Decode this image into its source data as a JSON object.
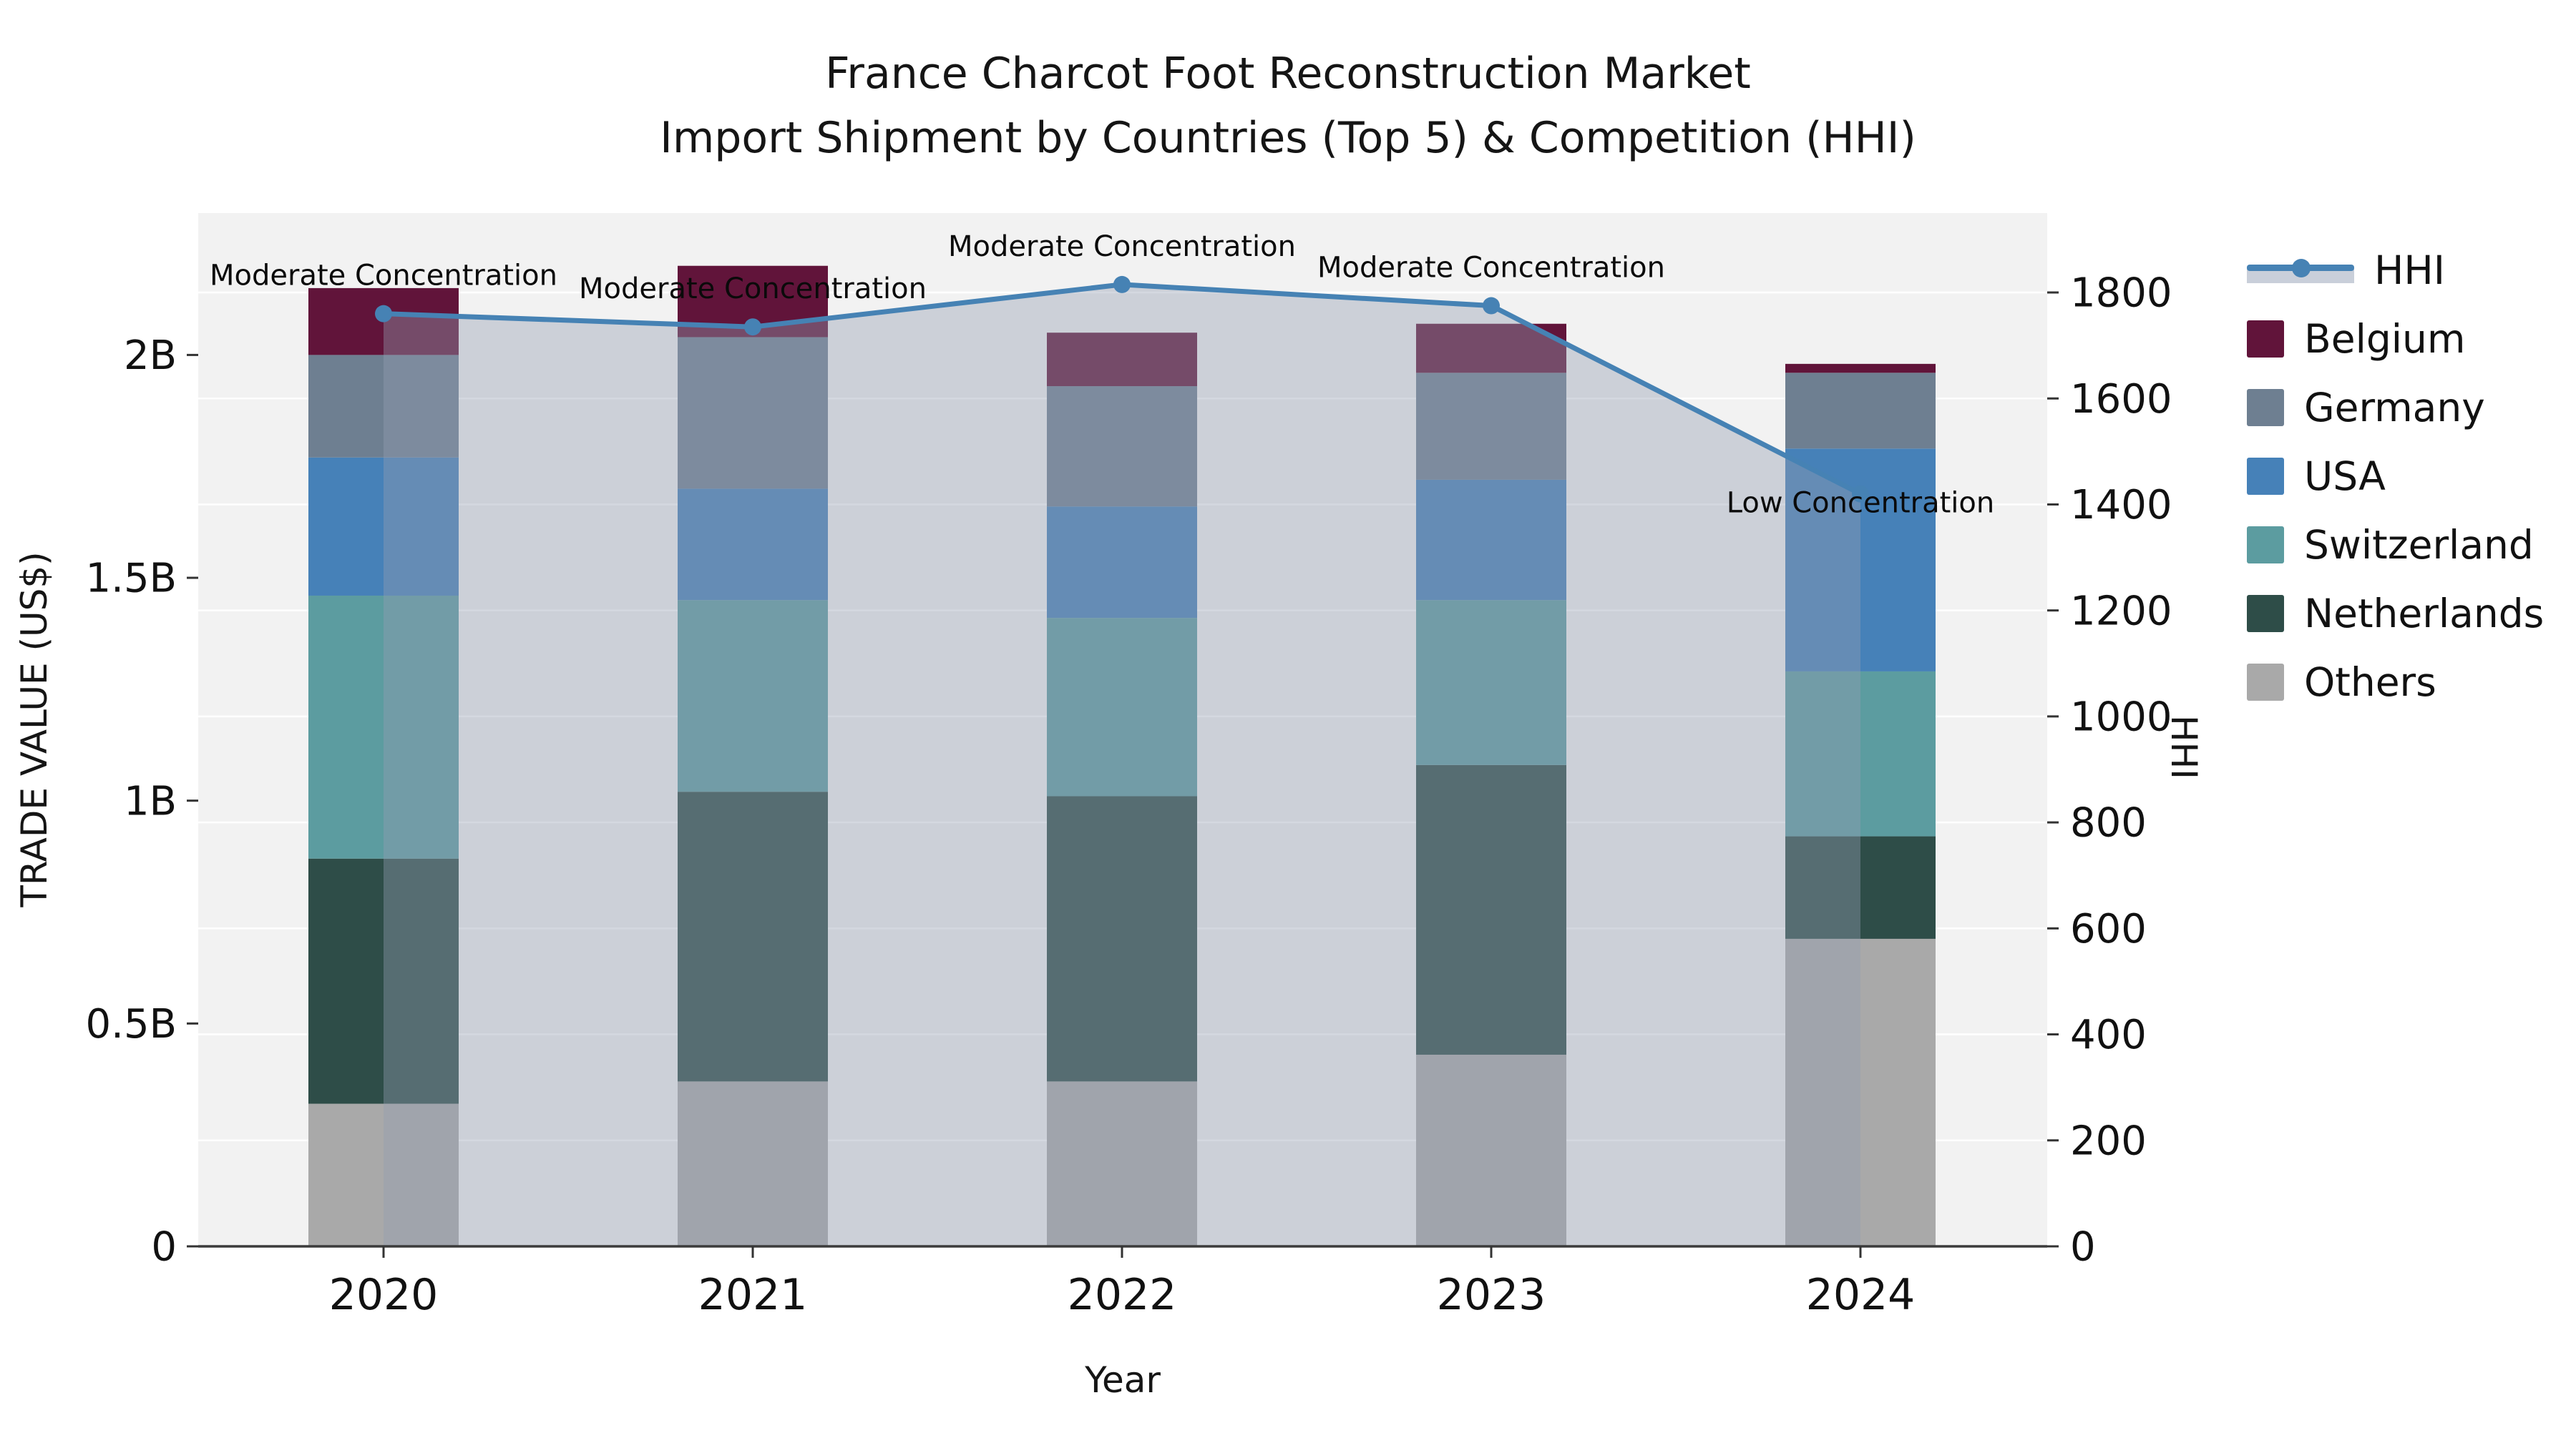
{
  "title": {
    "line1": "France Charcot Foot Reconstruction Market",
    "line2": "Import Shipment by Countries (Top 5) & Competition (HHI)"
  },
  "legend": {
    "items": [
      {
        "label": "HHI"
      },
      {
        "label": "Belgium"
      },
      {
        "label": "Germany"
      },
      {
        "label": "USA"
      },
      {
        "label": "Switzerland"
      },
      {
        "label": "Netherlands"
      },
      {
        "label": "Others"
      }
    ]
  },
  "chart_data": {
    "type": "stacked-bar+line",
    "unit": "Trade value in billions US$ (bars, left axis); HHI index (line, right axis)",
    "categories": [
      "2020",
      "2021",
      "2022",
      "2023",
      "2024"
    ],
    "series": [
      {
        "name": "Others",
        "color": "#a9a9a9",
        "values": [
          0.32,
          0.37,
          0.37,
          0.43,
          0.69
        ]
      },
      {
        "name": "Netherlands",
        "color": "#2e4d48",
        "values": [
          0.55,
          0.65,
          0.64,
          0.65,
          0.23
        ]
      },
      {
        "name": "Switzerland",
        "color": "#5c9ca0",
        "values": [
          0.59,
          0.43,
          0.4,
          0.37,
          0.37
        ]
      },
      {
        "name": "USA",
        "color": "#4681b8",
        "values": [
          0.31,
          0.25,
          0.25,
          0.27,
          0.5
        ]
      },
      {
        "name": "Germany",
        "color": "#6e7f91",
        "values": [
          0.23,
          0.34,
          0.27,
          0.24,
          0.17
        ]
      },
      {
        "name": "Belgium",
        "color": "#61143a",
        "values": [
          0.15,
          0.16,
          0.12,
          0.11,
          0.02
        ]
      }
    ],
    "bar_totals": [
      2.15,
      2.2,
      2.05,
      2.07,
      1.98
    ],
    "line": {
      "name": "HHI",
      "color": "#4682b4",
      "fill_color": "rgba(148,158,178,0.40)",
      "values": [
        1760,
        1735,
        1815,
        1775,
        1420
      ]
    },
    "annotations": [
      {
        "year": "2020",
        "text": "Moderate Concentration"
      },
      {
        "year": "2021",
        "text": "Moderate Concentration"
      },
      {
        "year": "2022",
        "text": "Moderate Concentration"
      },
      {
        "year": "2023",
        "text": "Moderate Concentration"
      },
      {
        "year": "2024",
        "text": "Low Concentration"
      }
    ],
    "y_left": {
      "label": "TRADE VALUE (US$)",
      "ticks": [
        {
          "v": 0,
          "t": "0"
        },
        {
          "v": 0.5,
          "t": "0.5B"
        },
        {
          "v": 1,
          "t": "1B"
        },
        {
          "v": 1.5,
          "t": "1.5B"
        },
        {
          "v": 2,
          "t": "2B"
        }
      ]
    },
    "y_right": {
      "label": "HHI",
      "ticks": [
        0,
        200,
        400,
        600,
        800,
        1000,
        1200,
        1400,
        1600,
        1800
      ]
    },
    "x_label": "Year",
    "plot_background": "#f2f2f2",
    "legend_position": "right"
  }
}
